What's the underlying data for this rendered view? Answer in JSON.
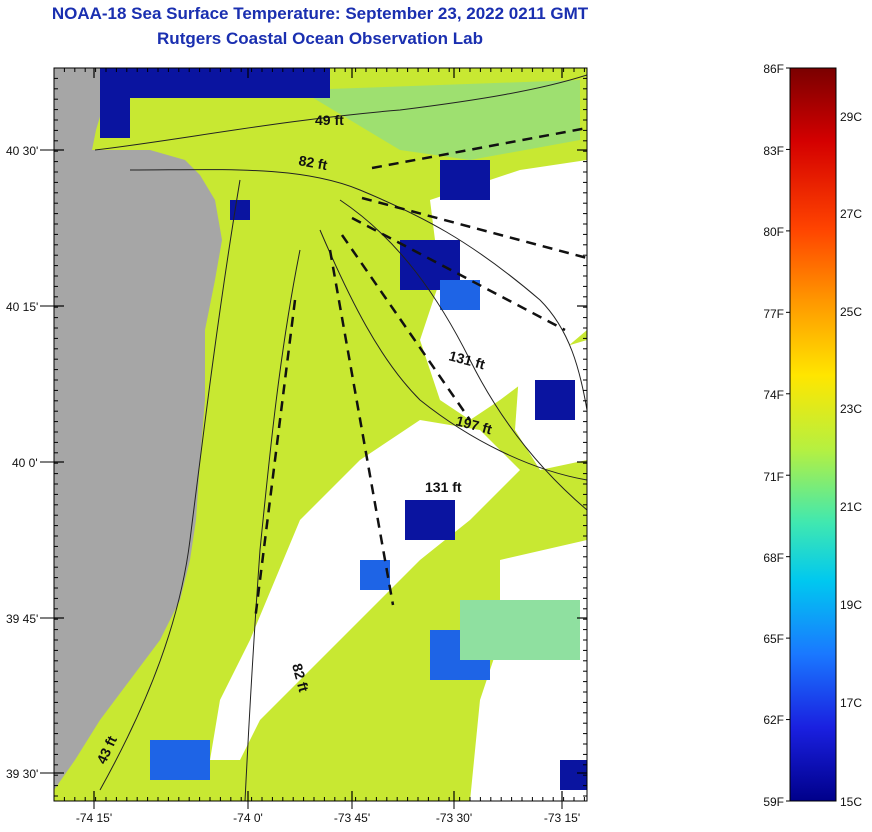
{
  "title_line1": "NOAA-18 Sea Surface Temperature:  September 23, 2022 0211 GMT",
  "title_line2": "Rutgers Coastal Ocean Observation Lab",
  "map": {
    "lat_labels": [
      "40 30'",
      "40 15'",
      "40 0'",
      "39 45'",
      "39 30'"
    ],
    "lon_labels": [
      "-74 15'",
      "-74 0'",
      "-73 45'",
      "-73 30'",
      "-73 15'"
    ],
    "contour_labels": [
      "49 ft",
      "82 ft",
      "131 ft",
      "197 ft",
      "131 ft",
      "82 ft",
      "43 ft"
    ],
    "colors": {
      "land": "#a6a6a6",
      "warm_water": "#c8e832",
      "mid_water": "#6fe0a0",
      "cool_water": "#1e64e6",
      "cold_water": "#0a14a0",
      "no_data": "#ffffff"
    }
  },
  "colorbar": {
    "fahrenheit_labels": [
      "86F",
      "83F",
      "80F",
      "77F",
      "74F",
      "71F",
      "68F",
      "65F",
      "62F",
      "59F"
    ],
    "celsius_labels": [
      "29C",
      "27C",
      "25C",
      "23C",
      "21C",
      "19C",
      "17C",
      "15C"
    ],
    "range_f": [
      59,
      86
    ]
  }
}
